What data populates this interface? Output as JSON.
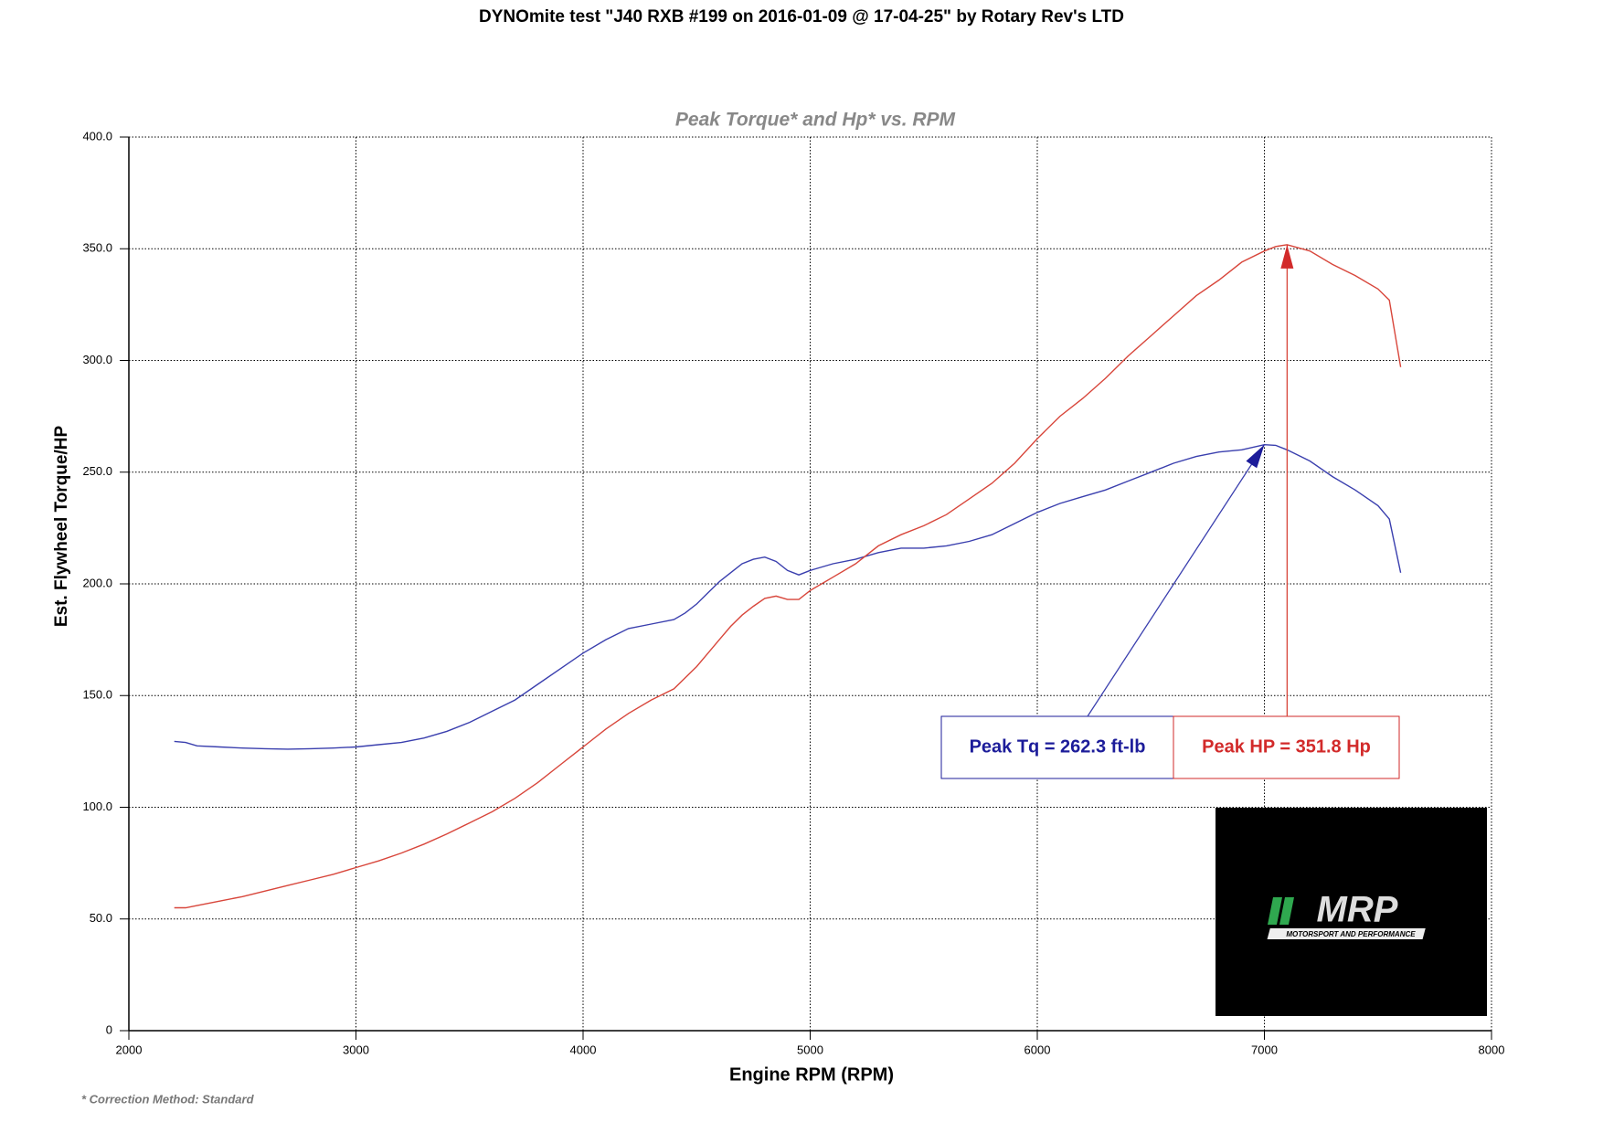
{
  "chart_data": {
    "type": "line",
    "title": "DYNOmite test \"J40 RXB #199 on 2016-01-09 @ 17-04-25\" by Rotary Rev's LTD",
    "subtitle": "Peak Torque* and Hp* vs. RPM",
    "x_label": "Engine RPM (RPM)",
    "y_label": "Est. Flywheel Torque/HP",
    "footnote": "* Correction Method: Standard",
    "x": [
      2200,
      2250,
      2300,
      2400,
      2500,
      2600,
      2700,
      2800,
      2900,
      3000,
      3100,
      3200,
      3300,
      3400,
      3500,
      3600,
      3700,
      3800,
      3900,
      4000,
      4100,
      4200,
      4300,
      4400,
      4450,
      4500,
      4550,
      4600,
      4650,
      4700,
      4750,
      4800,
      4850,
      4900,
      4950,
      5000,
      5100,
      5200,
      5300,
      5400,
      5500,
      5600,
      5700,
      5800,
      5900,
      6000,
      6100,
      6200,
      6300,
      6400,
      6500,
      6600,
      6700,
      6800,
      6900,
      7000,
      7050,
      7100,
      7200,
      7300,
      7400,
      7500,
      7550,
      7600
    ],
    "series": [
      {
        "color": "#3a3fae",
        "values": [
          129.5,
          129,
          127.5,
          127,
          126.5,
          126.2,
          126,
          126.2,
          126.5,
          127,
          128,
          129,
          131,
          134,
          138,
          143,
          148,
          155,
          162,
          169,
          175,
          180,
          182,
          184,
          187,
          191,
          196,
          201,
          205,
          209,
          211,
          212,
          210,
          206,
          204,
          206,
          209,
          211,
          214,
          216,
          216,
          217,
          219,
          222,
          227,
          232,
          236,
          239,
          242,
          246,
          250,
          254,
          257,
          259,
          260,
          262.3,
          262,
          260,
          255,
          248,
          242,
          235,
          229,
          205
        ]
      },
      {
        "color": "#d8463b",
        "values": [
          55,
          55,
          56,
          58,
          60,
          62.5,
          65,
          67.5,
          70,
          73,
          76,
          79.5,
          83.5,
          88,
          93,
          98,
          104,
          111,
          119,
          127,
          135,
          142,
          148,
          153,
          158,
          163,
          169,
          175,
          181,
          186,
          190,
          193.5,
          194.5,
          193,
          193,
          197,
          203,
          209,
          217,
          222,
          226,
          231,
          238,
          245,
          254,
          265,
          275,
          283,
          292,
          302,
          311,
          320,
          329,
          336,
          344,
          349,
          351,
          351.8,
          349,
          343,
          338,
          332,
          327,
          297
        ]
      }
    ],
    "xlim": [
      2000,
      8000
    ],
    "xticks": [
      2000,
      3000,
      4000,
      5000,
      6000,
      7000,
      8000
    ],
    "ylim": [
      0,
      400
    ],
    "yticks": [
      0,
      {
        "value": 50,
        "label": "50.0"
      },
      {
        "value": 100,
        "label": "100.0"
      },
      {
        "value": 150,
        "label": "150.0"
      },
      {
        "value": 200,
        "label": "200.0"
      },
      {
        "value": 250,
        "label": "250.0"
      },
      {
        "value": 300,
        "label": "300.0"
      },
      {
        "value": 350,
        "label": "350.0"
      },
      {
        "value": 400,
        "label": "400.0"
      }
    ],
    "grid": true,
    "annotations": [
      {
        "text": "Peak Tq =  262.3 ft-lb",
        "color": "#1c1c9a"
      },
      {
        "text": "Peak HP =  351.8 Hp",
        "color": "#d22a2a"
      }
    ],
    "logo": {
      "text": "MRP",
      "subtext": "MOTORSPORT AND PERFORMANCE"
    }
  }
}
